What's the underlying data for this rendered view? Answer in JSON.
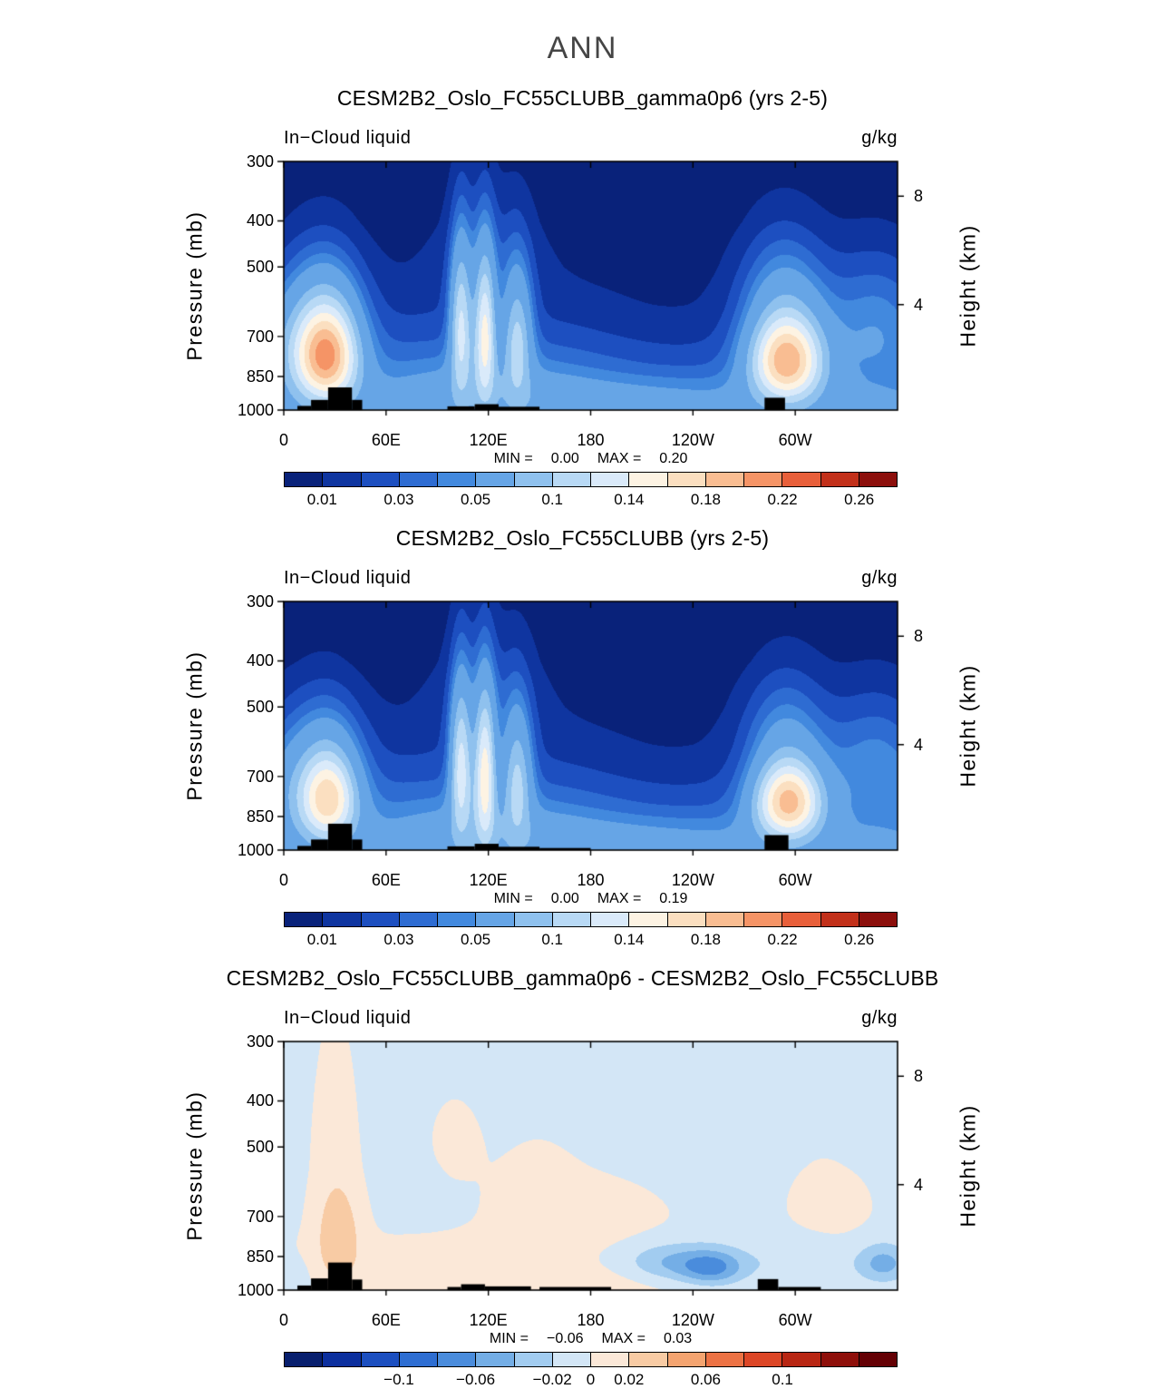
{
  "figure": {
    "title": "ANN"
  },
  "panels": [
    {
      "title": "CESM2B2_Oslo_FC55CLUBB_gamma0p6 (yrs 2-5)",
      "field_label": "In−Cloud liquid",
      "units_label": "g/kg",
      "y_axis_label": "Pressure (mb)",
      "y2_axis_label": "Height (km)",
      "stats": {
        "min_label": "MIN =",
        "min_value": "0.00",
        "max_label": "MAX =",
        "max_value": "0.20"
      }
    },
    {
      "title": "CESM2B2_Oslo_FC55CLUBB (yrs 2-5)",
      "field_label": "In−Cloud liquid",
      "units_label": "g/kg",
      "y_axis_label": "Pressure (mb)",
      "y2_axis_label": "Height (km)",
      "stats": {
        "min_label": "MIN =",
        "min_value": "0.00",
        "max_label": "MAX =",
        "max_value": "0.19"
      }
    },
    {
      "title": "CESM2B2_Oslo_FC55CLUBB_gamma0p6 - CESM2B2_Oslo_FC55CLUBB",
      "field_label": "In−Cloud liquid",
      "units_label": "g/kg",
      "y_axis_label": "Pressure (mb)",
      "y2_axis_label": "Height (km)",
      "stats": {
        "min_label": "MIN =",
        "min_value": "−0.06",
        "max_label": "MAX =",
        "max_value": "0.03"
      }
    }
  ],
  "chart_data": [
    {
      "type": "contour",
      "title": "CESM2B2_Oslo_FC55CLUBB_gamma0p6 (yrs 2-5)",
      "variable": "In−Cloud liquid",
      "units": "g/kg",
      "min": 0.0,
      "max": 0.2,
      "x": {
        "tick_lons": [
          0,
          60,
          120,
          180,
          240,
          300
        ],
        "tick_labels": [
          "0",
          "60E",
          "120E",
          "180",
          "120W",
          "60W"
        ],
        "range": [
          0,
          360
        ]
      },
      "y": {
        "label": "Pressure (mb)",
        "scale": "log",
        "range": [
          300,
          1000
        ],
        "ticks": [
          {
            "label": "300",
            "p": 300
          },
          {
            "label": "400",
            "p": 400
          },
          {
            "label": "500",
            "p": 500
          },
          {
            "label": "700",
            "p": 700
          },
          {
            "label": "850",
            "p": 850
          },
          {
            "label": "1000",
            "p": 1000
          }
        ]
      },
      "y2": {
        "label": "Height (km)",
        "ticks": [
          {
            "label": "8",
            "p": 355
          },
          {
            "label": "4",
            "p": 600
          }
        ]
      },
      "levels": [
        0.01,
        0.02,
        0.03,
        0.04,
        0.05,
        0.08,
        0.1,
        0.12,
        0.14,
        0.16,
        0.18,
        0.2,
        0.22,
        0.24,
        0.26
      ],
      "colors": [
        "#09227a",
        "#0f35a0",
        "#1d4fc0",
        "#2e6cd2",
        "#4289de",
        "#66a5e6",
        "#8fc1ee",
        "#b8d9f5",
        "#daeafa",
        "#fdf3e3",
        "#fbdfc0",
        "#f9bd92",
        "#f59466",
        "#e85f3a",
        "#c2301a",
        "#8c0f0c"
      ],
      "colorbar_labels": [
        {
          "text": "0.01",
          "boundary": 0
        },
        {
          "text": "0.03",
          "boundary": 2
        },
        {
          "text": "0.05",
          "boundary": 4
        },
        {
          "text": "0.1",
          "boundary": 6
        },
        {
          "text": "0.14",
          "boundary": 8
        },
        {
          "text": "0.18",
          "boundary": 10
        },
        {
          "text": "0.22",
          "boundary": 12
        },
        {
          "text": "0.26",
          "boundary": 14
        }
      ],
      "background_profile": [
        [
          300,
          0.002
        ],
        [
          400,
          0.004
        ],
        [
          500,
          0.009
        ],
        [
          600,
          0.016
        ],
        [
          700,
          0.025
        ],
        [
          800,
          0.034
        ],
        [
          850,
          0.04
        ],
        [
          925,
          0.048
        ],
        [
          1000,
          0.055
        ]
      ],
      "anomalies": [
        {
          "lon": 25,
          "p": 770,
          "lon_sigma": 13,
          "p_sigma": 125,
          "amp": 0.168
        },
        {
          "lon": 24,
          "p": 580,
          "lon_sigma": 16,
          "p_sigma": 120,
          "amp": 0.035
        },
        {
          "lon": 2,
          "p": 720,
          "lon_sigma": 12,
          "p_sigma": 140,
          "amp": 0.028
        },
        {
          "lon": 104,
          "p": 660,
          "lon_sigma": 4.5,
          "p_sigma": 170,
          "amp": 0.1
        },
        {
          "lon": 118,
          "p": 680,
          "lon_sigma": 4.5,
          "p_sigma": 170,
          "amp": 0.12
        },
        {
          "lon": 137,
          "p": 700,
          "lon_sigma": 6,
          "p_sigma": 150,
          "amp": 0.08
        },
        {
          "lon": 120,
          "p": 460,
          "lon_sigma": 22,
          "p_sigma": 110,
          "amp": 0.015
        },
        {
          "lon": 120,
          "p": 880,
          "lon_sigma": 45,
          "p_sigma": 100,
          "amp": 0.018
        },
        {
          "lon": 295,
          "p": 785,
          "lon_sigma": 15,
          "p_sigma": 115,
          "amp": 0.162
        },
        {
          "lon": 293,
          "p": 560,
          "lon_sigma": 18,
          "p_sigma": 120,
          "amp": 0.038
        },
        {
          "lon": 347,
          "p": 640,
          "lon_sigma": 20,
          "p_sigma": 140,
          "amp": 0.028
        },
        {
          "lon": 195,
          "p": 960,
          "lon_sigma": 55,
          "p_sigma": 70,
          "amp": 0.012
        },
        {
          "lon": 230,
          "p": 700,
          "lon_sigma": 40,
          "p_sigma": 150,
          "amp": -0.008
        }
      ],
      "topography": [
        [
          8,
          16,
          980
        ],
        [
          16,
          26,
          952
        ],
        [
          26,
          40,
          896
        ],
        [
          40,
          46,
          952
        ],
        [
          96,
          112,
          982
        ],
        [
          112,
          126,
          972
        ],
        [
          126,
          150,
          984
        ],
        [
          282,
          294,
          942
        ]
      ]
    },
    {
      "type": "contour",
      "title": "CESM2B2_Oslo_FC55CLUBB (yrs 2-5)",
      "variable": "In−Cloud liquid",
      "units": "g/kg",
      "min": 0.0,
      "max": 0.19,
      "x": {
        "tick_lons": [
          0,
          60,
          120,
          180,
          240,
          300
        ],
        "tick_labels": [
          "0",
          "60E",
          "120E",
          "180",
          "120W",
          "60W"
        ],
        "range": [
          0,
          360
        ]
      },
      "y": {
        "label": "Pressure (mb)",
        "scale": "log",
        "range": [
          300,
          1000
        ],
        "ticks": [
          {
            "label": "300",
            "p": 300
          },
          {
            "label": "400",
            "p": 400
          },
          {
            "label": "500",
            "p": 500
          },
          {
            "label": "700",
            "p": 700
          },
          {
            "label": "850",
            "p": 850
          },
          {
            "label": "1000",
            "p": 1000
          }
        ]
      },
      "y2": {
        "label": "Height (km)",
        "ticks": [
          {
            "label": "8",
            "p": 355
          },
          {
            "label": "4",
            "p": 600
          }
        ]
      },
      "levels": [
        0.01,
        0.02,
        0.03,
        0.04,
        0.05,
        0.08,
        0.1,
        0.12,
        0.14,
        0.16,
        0.18,
        0.2,
        0.22,
        0.24,
        0.26
      ],
      "colors": [
        "#09227a",
        "#0f35a0",
        "#1d4fc0",
        "#2e6cd2",
        "#4289de",
        "#66a5e6",
        "#8fc1ee",
        "#b8d9f5",
        "#daeafa",
        "#fdf3e3",
        "#fbdfc0",
        "#f9bd92",
        "#f59466",
        "#e85f3a",
        "#c2301a",
        "#8c0f0c"
      ],
      "colorbar_labels": [
        {
          "text": "0.01",
          "boundary": 0
        },
        {
          "text": "0.03",
          "boundary": 2
        },
        {
          "text": "0.05",
          "boundary": 4
        },
        {
          "text": "0.1",
          "boundary": 6
        },
        {
          "text": "0.14",
          "boundary": 8
        },
        {
          "text": "0.18",
          "boundary": 10
        },
        {
          "text": "0.22",
          "boundary": 12
        },
        {
          "text": "0.26",
          "boundary": 14
        }
      ],
      "background_profile": [
        [
          300,
          0.002
        ],
        [
          400,
          0.004
        ],
        [
          500,
          0.009
        ],
        [
          600,
          0.016
        ],
        [
          700,
          0.025
        ],
        [
          800,
          0.034
        ],
        [
          850,
          0.04
        ],
        [
          925,
          0.048
        ],
        [
          1000,
          0.055
        ]
      ],
      "anomalies": [
        {
          "lon": 26,
          "p": 780,
          "lon_sigma": 12,
          "p_sigma": 115,
          "amp": 0.135
        },
        {
          "lon": 25,
          "p": 590,
          "lon_sigma": 15,
          "p_sigma": 115,
          "amp": 0.03
        },
        {
          "lon": 2,
          "p": 720,
          "lon_sigma": 12,
          "p_sigma": 140,
          "amp": 0.026
        },
        {
          "lon": 104,
          "p": 660,
          "lon_sigma": 4.5,
          "p_sigma": 170,
          "amp": 0.105
        },
        {
          "lon": 118,
          "p": 680,
          "lon_sigma": 4.5,
          "p_sigma": 175,
          "amp": 0.125
        },
        {
          "lon": 137,
          "p": 700,
          "lon_sigma": 6,
          "p_sigma": 150,
          "amp": 0.078
        },
        {
          "lon": 120,
          "p": 460,
          "lon_sigma": 22,
          "p_sigma": 110,
          "amp": 0.016
        },
        {
          "lon": 120,
          "p": 880,
          "lon_sigma": 45,
          "p_sigma": 100,
          "amp": 0.018
        },
        {
          "lon": 296,
          "p": 790,
          "lon_sigma": 14,
          "p_sigma": 105,
          "amp": 0.155
        },
        {
          "lon": 294,
          "p": 560,
          "lon_sigma": 17,
          "p_sigma": 115,
          "amp": 0.034
        },
        {
          "lon": 347,
          "p": 640,
          "lon_sigma": 20,
          "p_sigma": 140,
          "amp": 0.027
        },
        {
          "lon": 195,
          "p": 960,
          "lon_sigma": 55,
          "p_sigma": 70,
          "amp": 0.012
        },
        {
          "lon": 230,
          "p": 700,
          "lon_sigma": 40,
          "p_sigma": 150,
          "amp": -0.008
        }
      ],
      "topography": [
        [
          8,
          16,
          980
        ],
        [
          16,
          26,
          950
        ],
        [
          26,
          40,
          880
        ],
        [
          40,
          46,
          950
        ],
        [
          96,
          112,
          982
        ],
        [
          112,
          126,
          970
        ],
        [
          126,
          150,
          984
        ],
        [
          150,
          180,
          990
        ],
        [
          282,
          296,
          930
        ]
      ]
    },
    {
      "type": "contour",
      "title": "CESM2B2_Oslo_FC55CLUBB_gamma0p6 - CESM2B2_Oslo_FC55CLUBB",
      "variable": "In−Cloud liquid",
      "units": "g/kg",
      "min": -0.06,
      "max": 0.03,
      "x": {
        "tick_lons": [
          0,
          60,
          120,
          180,
          240,
          300
        ],
        "tick_labels": [
          "0",
          "60E",
          "120E",
          "180",
          "120W",
          "60W"
        ],
        "range": [
          0,
          360
        ]
      },
      "y": {
        "label": "Pressure (mb)",
        "scale": "log",
        "range": [
          300,
          1000
        ],
        "ticks": [
          {
            "label": "300",
            "p": 300
          },
          {
            "label": "400",
            "p": 400
          },
          {
            "label": "500",
            "p": 500
          },
          {
            "label": "700",
            "p": 700
          },
          {
            "label": "850",
            "p": 850
          },
          {
            "label": "1000",
            "p": 1000
          }
        ]
      },
      "y2": {
        "label": "Height (km)",
        "ticks": [
          {
            "label": "8",
            "p": 355
          },
          {
            "label": "4",
            "p": 600
          }
        ]
      },
      "levels": [
        -0.14,
        -0.12,
        -0.1,
        -0.08,
        -0.06,
        -0.04,
        -0.02,
        0,
        0.02,
        0.04,
        0.06,
        0.08,
        0.1,
        0.12,
        0.14
      ],
      "colors": [
        "#081f6e",
        "#0c2f9e",
        "#1c4fc0",
        "#2e6ed2",
        "#4a8cdc",
        "#74aee6",
        "#a2ccf0",
        "#d3e6f6",
        "#fbe8d8",
        "#f8cba4",
        "#f4a470",
        "#ec7244",
        "#dc4626",
        "#b82613",
        "#8e0f0a",
        "#640004"
      ],
      "colorbar_labels": [
        {
          "text": "−0.1",
          "boundary": 2
        },
        {
          "text": "−0.06",
          "boundary": 4
        },
        {
          "text": "−0.02",
          "boundary": 6
        },
        {
          "text": "0",
          "boundary": 7
        },
        {
          "text": "0.02",
          "boundary": 8
        },
        {
          "text": "0.06",
          "boundary": 10
        },
        {
          "text": "0.1",
          "boundary": 12
        }
      ],
      "background_profile": [
        [
          300,
          -0.006
        ],
        [
          550,
          -0.006
        ],
        [
          750,
          -0.003
        ],
        [
          900,
          -0.001
        ],
        [
          1000,
          0.0
        ]
      ],
      "anomalies": [
        {
          "lon": 32,
          "p": 770,
          "lon_sigma": 9,
          "p_sigma": 120,
          "amp": 0.034
        },
        {
          "lon": 30,
          "p": 500,
          "lon_sigma": 11,
          "p_sigma": 200,
          "amp": 0.013
        },
        {
          "lon": 62,
          "p": 900,
          "lon_sigma": 40,
          "p_sigma": 90,
          "amp": 0.008
        },
        {
          "lon": 130,
          "p": 880,
          "lon_sigma": 28,
          "p_sigma": 90,
          "amp": 0.007
        },
        {
          "lon": 100,
          "p": 480,
          "lon_sigma": 14,
          "p_sigma": 90,
          "amp": 0.009
        },
        {
          "lon": 178,
          "p": 690,
          "lon_sigma": 32,
          "p_sigma": 90,
          "amp": 0.013
        },
        {
          "lon": 148,
          "p": 580,
          "lon_sigma": 20,
          "p_sigma": 110,
          "amp": 0.008
        },
        {
          "lon": 210,
          "p": 950,
          "lon_sigma": 40,
          "p_sigma": 55,
          "amp": 0.01
        },
        {
          "lon": 228,
          "p": 880,
          "lon_sigma": 20,
          "p_sigma": 60,
          "amp": -0.042
        },
        {
          "lon": 252,
          "p": 900,
          "lon_sigma": 13,
          "p_sigma": 55,
          "amp": -0.055
        },
        {
          "lon": 300,
          "p": 880,
          "lon_sigma": 24,
          "p_sigma": 70,
          "amp": -0.018
        },
        {
          "lon": 352,
          "p": 880,
          "lon_sigma": 11,
          "p_sigma": 60,
          "amp": -0.046
        },
        {
          "lon": 340,
          "p": 420,
          "lon_sigma": 12,
          "p_sigma": 70,
          "amp": -0.008
        },
        {
          "lon": 5,
          "p": 950,
          "lon_sigma": 7,
          "p_sigma": 60,
          "amp": -0.018
        },
        {
          "lon": 320,
          "p": 640,
          "lon_sigma": 18,
          "p_sigma": 100,
          "amp": 0.012
        }
      ],
      "topography": [
        [
          8,
          16,
          978
        ],
        [
          16,
          26,
          945
        ],
        [
          26,
          40,
          875
        ],
        [
          40,
          46,
          950
        ],
        [
          96,
          104,
          985
        ],
        [
          104,
          118,
          972
        ],
        [
          118,
          145,
          982
        ],
        [
          150,
          192,
          985
        ],
        [
          278,
          290,
          948
        ],
        [
          290,
          315,
          985
        ]
      ]
    }
  ]
}
